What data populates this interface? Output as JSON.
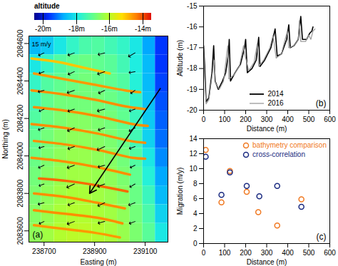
{
  "chart_data": [
    {
      "type": "heatmap",
      "panel_label": "(a)",
      "x_label": "Easting (m)",
      "y_label": "Northing (m)",
      "xlim": [
        238640,
        239190
      ],
      "xticks": [
        238700,
        238900,
        239100
      ],
      "ylim": [
        2083540,
        2084640
      ],
      "yticks": [
        2083600,
        2083800,
        2084000,
        2084200,
        2084400,
        2084600
      ],
      "colorbar": {
        "title": "altitude",
        "range": [
          -20.5,
          -13.5
        ],
        "ticks": [
          {
            "value": -20,
            "label": "-20m"
          },
          {
            "value": -18,
            "label": "-18m"
          },
          {
            "value": -16,
            "label": "-16m"
          },
          {
            "value": -14,
            "label": "-14m"
          }
        ]
      },
      "easting": [
        238665,
        238715,
        238765,
        238815,
        238865,
        238915,
        238965,
        239015,
        239065,
        239115,
        239165
      ],
      "northing": [
        2084590,
        2084490,
        2084390,
        2084290,
        2084190,
        2084090,
        2083990,
        2083890,
        2083790,
        2083690,
        2083590
      ],
      "cells": [
        [
          -18.6,
          -18.4,
          -18.0,
          -17.6,
          -17.3,
          -17.2,
          -17.4,
          -17.6,
          -18.0,
          -18.8,
          -19.6
        ],
        [
          -18.0,
          -17.6,
          -17.2,
          -17.0,
          -16.9,
          -17.0,
          -17.1,
          -17.4,
          -17.9,
          -18.6,
          -19.6
        ],
        [
          -17.6,
          -17.2,
          -17.0,
          -16.9,
          -16.8,
          -16.9,
          -17.0,
          -17.2,
          -17.8,
          -18.6,
          -19.5
        ],
        [
          -17.4,
          -17.0,
          -16.8,
          -16.8,
          -16.8,
          -16.8,
          -16.9,
          -17.1,
          -17.6,
          -18.5,
          -19.4
        ],
        [
          -17.2,
          -16.9,
          -16.7,
          -16.6,
          -16.6,
          -16.7,
          -16.8,
          -17.0,
          -17.5,
          -18.4,
          -19.3
        ],
        [
          -17.0,
          -16.8,
          -16.6,
          -16.5,
          -16.5,
          -16.6,
          -16.7,
          -16.9,
          -17.4,
          -18.3,
          -19.2
        ],
        [
          -16.9,
          -16.7,
          -16.5,
          -16.4,
          -16.4,
          -16.5,
          -16.6,
          -16.8,
          -17.2,
          -18.0,
          -19.0
        ],
        [
          -16.8,
          -16.6,
          -16.4,
          -16.3,
          -16.3,
          -16.4,
          -16.5,
          -16.7,
          -17.0,
          -17.8,
          -18.8
        ],
        [
          -16.7,
          -16.5,
          -16.3,
          -16.2,
          -16.2,
          -16.3,
          -16.4,
          -16.6,
          -16.9,
          -17.5,
          -18.6
        ],
        [
          -16.6,
          -16.4,
          -16.2,
          -16.1,
          -16.1,
          -16.2,
          -16.3,
          -16.5,
          -16.8,
          -17.3,
          -18.3
        ],
        [
          -16.5,
          -16.3,
          -16.1,
          -16.0,
          -16.0,
          -16.1,
          -16.2,
          -16.4,
          -16.7,
          -17.1,
          -18.0
        ]
      ],
      "crests": [
        {
          "altitude": -15.0,
          "points": [
            [
              238650,
              2084520
            ],
            [
              238760,
              2084500
            ],
            [
              238860,
              2084470
            ],
            [
              238960,
              2084440
            ]
          ]
        },
        {
          "altitude": -14.6,
          "points": [
            [
              238660,
              2084440
            ],
            [
              238780,
              2084410
            ],
            [
              238900,
              2084380
            ],
            [
              239020,
              2084350
            ],
            [
              239080,
              2084340
            ]
          ]
        },
        {
          "altitude": -14.5,
          "points": [
            [
              238650,
              2084350
            ],
            [
              238770,
              2084330
            ],
            [
              238900,
              2084300
            ],
            [
              239040,
              2084260
            ],
            [
              239100,
              2084250
            ]
          ]
        },
        {
          "altitude": -14.5,
          "points": [
            [
              238660,
              2084260
            ],
            [
              238790,
              2084240
            ],
            [
              238920,
              2084210
            ],
            [
              239050,
              2084170
            ],
            [
              239110,
              2084160
            ]
          ]
        },
        {
          "altitude": -14.5,
          "points": [
            [
              238650,
              2084170
            ],
            [
              238780,
              2084150
            ],
            [
              238910,
              2084120
            ],
            [
              239040,
              2084080
            ],
            [
              239100,
              2084070
            ]
          ]
        },
        {
          "altitude": -14.5,
          "points": [
            [
              238660,
              2084080
            ],
            [
              238790,
              2084060
            ],
            [
              238920,
              2084030
            ],
            [
              239050,
              2083990
            ],
            [
              239100,
              2083985
            ]
          ]
        },
        {
          "altitude": -14.5,
          "points": [
            [
              238650,
              2083990
            ],
            [
              238780,
              2083970
            ],
            [
              238910,
              2083940
            ],
            [
              239040,
              2083900
            ]
          ]
        },
        {
          "altitude": -14.2,
          "points": [
            [
              238680,
              2083880
            ],
            [
              238800,
              2083865
            ],
            [
              238920,
              2083840
            ],
            [
              239030,
              2083810
            ]
          ]
        },
        {
          "altitude": -14.5,
          "points": [
            [
              238660,
              2083800
            ],
            [
              238790,
              2083780
            ],
            [
              238910,
              2083750
            ],
            [
              239020,
              2083720
            ]
          ]
        },
        {
          "altitude": -14.5,
          "points": [
            [
              238660,
              2083710
            ],
            [
              238790,
              2083690
            ],
            [
              238910,
              2083670
            ],
            [
              239010,
              2083640
            ]
          ]
        },
        {
          "altitude": -14.6,
          "points": [
            [
              238660,
              2083630
            ],
            [
              238780,
              2083610
            ],
            [
              238900,
              2083590
            ],
            [
              239000,
              2083565
            ]
          ]
        }
      ],
      "vectors": {
        "label": "15 m/y",
        "reference": 15,
        "values": [
          [
            238700,
            2084550,
            8,
            245
          ],
          [
            238820,
            2084550,
            9,
            250
          ],
          [
            238940,
            2084550,
            9,
            255
          ],
          [
            239060,
            2084550,
            10,
            240
          ],
          [
            238700,
            2084450,
            7,
            250
          ],
          [
            238820,
            2084450,
            9,
            245
          ],
          [
            238940,
            2084450,
            10,
            250
          ],
          [
            239060,
            2084450,
            8,
            260
          ],
          [
            238700,
            2084350,
            8,
            255
          ],
          [
            238820,
            2084350,
            10,
            250
          ],
          [
            238940,
            2084350,
            9,
            245
          ],
          [
            239060,
            2084350,
            7,
            235
          ],
          [
            238700,
            2084250,
            7,
            245
          ],
          [
            238820,
            2084250,
            9,
            250
          ],
          [
            238940,
            2084250,
            10,
            255
          ],
          [
            239060,
            2084250,
            8,
            250
          ],
          [
            238700,
            2084150,
            8,
            250
          ],
          [
            238820,
            2084150,
            10,
            245
          ],
          [
            238940,
            2084150,
            9,
            250
          ],
          [
            239060,
            2084150,
            9,
            240
          ],
          [
            238700,
            2084050,
            7,
            255
          ],
          [
            238820,
            2084050,
            9,
            250
          ],
          [
            238940,
            2084050,
            11,
            245
          ],
          [
            239060,
            2084050,
            8,
            250
          ],
          [
            238700,
            2083950,
            8,
            245
          ],
          [
            238820,
            2083950,
            10,
            250
          ],
          [
            238940,
            2083950,
            9,
            255
          ],
          [
            239060,
            2083950,
            7,
            245
          ],
          [
            238700,
            2083850,
            7,
            250
          ],
          [
            238820,
            2083850,
            11,
            245
          ],
          [
            238940,
            2083850,
            10,
            250
          ],
          [
            239060,
            2083850,
            8,
            240
          ],
          [
            238700,
            2083750,
            8,
            255
          ],
          [
            238820,
            2083750,
            9,
            250
          ],
          [
            238940,
            2083750,
            10,
            245
          ],
          [
            239060,
            2083750,
            9,
            250
          ],
          [
            238700,
            2083650,
            7,
            245
          ],
          [
            238820,
            2083650,
            10,
            250
          ],
          [
            238940,
            2083650,
            9,
            255
          ],
          [
            239060,
            2083650,
            8,
            250
          ]
        ]
      },
      "transect": {
        "start": [
          239160,
          2084360
        ],
        "end": [
          238880,
          2083800
        ]
      }
    },
    {
      "type": "line",
      "panel_label": "(b)",
      "x_label": "Distance (m)",
      "y_label": "Altitude (m)",
      "xlim": [
        0,
        600
      ],
      "xticks": [
        0,
        100,
        200,
        300,
        400,
        500,
        600
      ],
      "ylim": [
        -20,
        -15
      ],
      "yticks": [
        -20,
        -19,
        -18,
        -17,
        -16,
        -15
      ],
      "legend": "bottom",
      "series": [
        {
          "name": "2014",
          "color": "#000000",
          "x": [
            0,
            5,
            12,
            25,
            40,
            48,
            55,
            70,
            90,
            105,
            118,
            122,
            128,
            150,
            175,
            195,
            200,
            208,
            230,
            250,
            262,
            268,
            290,
            320,
            340,
            350,
            370,
            395,
            405,
            412,
            430,
            450,
            462,
            470,
            490,
            505,
            515,
            520
          ],
          "values": [
            -16.9,
            -17.8,
            -19.6,
            -19.4,
            -18.2,
            -16.9,
            -18.6,
            -19.0,
            -18.6,
            -18.2,
            -17.3,
            -16.6,
            -18.6,
            -18.2,
            -17.8,
            -17.0,
            -16.6,
            -18.2,
            -18.0,
            -17.6,
            -16.5,
            -17.9,
            -17.6,
            -17.0,
            -16.1,
            -17.4,
            -17.3,
            -16.6,
            -15.9,
            -17.0,
            -16.9,
            -16.6,
            -15.5,
            -16.6,
            -16.6,
            -16.3,
            -16.2,
            -16.0
          ]
        },
        {
          "name": "2016",
          "color": "#9a9a9a",
          "x": [
            0,
            5,
            12,
            25,
            40,
            50,
            57,
            75,
            95,
            110,
            115,
            120,
            145,
            170,
            190,
            195,
            215,
            240,
            255,
            262,
            285,
            315,
            330,
            345,
            370,
            390,
            398,
            405,
            430,
            450,
            455,
            462,
            485,
            500,
            510,
            520,
            530
          ],
          "values": [
            -17.0,
            -18.4,
            -19.7,
            -19.5,
            -18.4,
            -17.6,
            -18.7,
            -19.0,
            -18.6,
            -17.3,
            -16.9,
            -18.5,
            -18.3,
            -17.9,
            -16.9,
            -17.3,
            -18.1,
            -17.7,
            -16.8,
            -17.9,
            -17.6,
            -17.0,
            -16.4,
            -17.5,
            -17.3,
            -16.5,
            -16.2,
            -17.0,
            -16.9,
            -16.6,
            -15.7,
            -16.7,
            -16.7,
            -16.4,
            -16.6,
            -16.2,
            -16.1
          ]
        }
      ]
    },
    {
      "type": "scatter",
      "panel_label": "(c)",
      "x_label": "Distance (m)",
      "y_label": "Migration (m/y)",
      "xlim": [
        0,
        600
      ],
      "xticks": [
        0,
        100,
        200,
        300,
        400,
        500,
        600
      ],
      "ylim": [
        0,
        14
      ],
      "yticks": [
        0,
        2,
        4,
        6,
        8,
        10,
        12,
        14
      ],
      "legend": "top-right",
      "marker": "open circle",
      "series": [
        {
          "name": "bathymetry comparison",
          "color": "#f07820",
          "x": [
            10,
            85,
            125,
            205,
            260,
            350,
            465
          ],
          "values": [
            12.5,
            5.5,
            9.7,
            6.9,
            4.2,
            2.4,
            5.9
          ]
        },
        {
          "name": "cross-correlation",
          "color": "#1a2a80",
          "x": [
            10,
            85,
            125,
            205,
            265,
            350,
            465
          ],
          "values": [
            11.6,
            6.5,
            9.5,
            7.7,
            6.3,
            7.7,
            4.9
          ]
        }
      ]
    }
  ]
}
